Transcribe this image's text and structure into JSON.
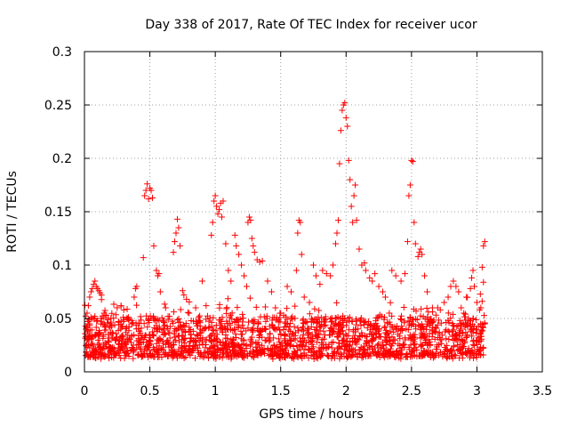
{
  "chart_data": {
    "type": "scatter",
    "title": "Day 338 of 2017, Rate Of TEC Index for receiver ucor",
    "xlabel": "GPS time / hours",
    "ylabel": "ROTI / TECUs",
    "xlim": [
      0,
      3.5
    ],
    "ylim": [
      0,
      0.3
    ],
    "x_ticks": [
      0,
      0.5,
      1,
      1.5,
      2,
      2.5,
      3,
      3.5
    ],
    "x_tick_labels": [
      "0",
      "0.5",
      "1",
      "1.5",
      "2",
      "2.5",
      "3",
      "3.5"
    ],
    "y_ticks": [
      0,
      0.05,
      0.1,
      0.15,
      0.2,
      0.25,
      0.3
    ],
    "y_tick_labels": [
      "0",
      "0.05",
      "0.1",
      "0.15",
      "0.2",
      "0.25",
      "0.3"
    ],
    "grid": true,
    "marker": "plus",
    "point_color": "#ff0000",
    "series": [
      {
        "points": [
          [
            0.01,
            0.04
          ],
          [
            0.02,
            0.055
          ],
          [
            0.03,
            0.062
          ],
          [
            0.04,
            0.07
          ],
          [
            0.05,
            0.075
          ],
          [
            0.06,
            0.078
          ],
          [
            0.07,
            0.082
          ],
          [
            0.08,
            0.085
          ],
          [
            0.09,
            0.08
          ],
          [
            0.1,
            0.078
          ],
          [
            0.11,
            0.076
          ],
          [
            0.12,
            0.074
          ],
          [
            0.13,
            0.072
          ],
          [
            0.02,
            0.03
          ],
          [
            0.04,
            0.045
          ],
          [
            0.06,
            0.05
          ],
          [
            0.08,
            0.052
          ],
          [
            0.1,
            0.048
          ],
          [
            0.15,
            0.055
          ],
          [
            0.18,
            0.05
          ],
          [
            0.2,
            0.045
          ],
          [
            0.25,
            0.06
          ],
          [
            0.28,
            0.062
          ],
          [
            0.3,
            0.058
          ],
          [
            0.33,
            0.05
          ],
          [
            0.36,
            0.045
          ],
          [
            0.38,
            0.07
          ],
          [
            0.39,
            0.078
          ],
          [
            0.4,
            0.08
          ],
          [
            0.45,
            0.107
          ],
          [
            0.46,
            0.165
          ],
          [
            0.47,
            0.17
          ],
          [
            0.48,
            0.176
          ],
          [
            0.49,
            0.162
          ],
          [
            0.5,
            0.172
          ],
          [
            0.51,
            0.17
          ],
          [
            0.52,
            0.163
          ],
          [
            0.53,
            0.118
          ],
          [
            0.55,
            0.095
          ],
          [
            0.56,
            0.09
          ],
          [
            0.57,
            0.092
          ],
          [
            0.58,
            0.075
          ],
          [
            0.62,
            0.06
          ],
          [
            0.65,
            0.052
          ],
          [
            0.68,
            0.112
          ],
          [
            0.69,
            0.122
          ],
          [
            0.7,
            0.13
          ],
          [
            0.71,
            0.143
          ],
          [
            0.72,
            0.135
          ],
          [
            0.73,
            0.118
          ],
          [
            0.75,
            0.076
          ],
          [
            0.76,
            0.072
          ],
          [
            0.78,
            0.068
          ],
          [
            0.8,
            0.055
          ],
          [
            0.85,
            0.06
          ],
          [
            0.9,
            0.085
          ],
          [
            0.93,
            0.062
          ],
          [
            0.97,
            0.128
          ],
          [
            0.98,
            0.14
          ],
          [
            0.99,
            0.16
          ],
          [
            1.0,
            0.165
          ],
          [
            1.01,
            0.155
          ],
          [
            1.02,
            0.148
          ],
          [
            1.03,
            0.152
          ],
          [
            1.04,
            0.158
          ],
          [
            1.05,
            0.145
          ],
          [
            1.06,
            0.16
          ],
          [
            1.08,
            0.12
          ],
          [
            1.1,
            0.095
          ],
          [
            1.12,
            0.085
          ],
          [
            1.15,
            0.128
          ],
          [
            1.16,
            0.118
          ],
          [
            1.18,
            0.11
          ],
          [
            1.2,
            0.1
          ],
          [
            1.22,
            0.09
          ],
          [
            1.24,
            0.08
          ],
          [
            1.25,
            0.14
          ],
          [
            1.26,
            0.145
          ],
          [
            1.27,
            0.142
          ],
          [
            1.28,
            0.125
          ],
          [
            1.29,
            0.118
          ],
          [
            1.3,
            0.112
          ],
          [
            1.32,
            0.105
          ],
          [
            1.34,
            0.103
          ],
          [
            1.36,
            0.104
          ],
          [
            1.4,
            0.085
          ],
          [
            1.43,
            0.075
          ],
          [
            1.46,
            0.06
          ],
          [
            1.5,
            0.055
          ],
          [
            1.55,
            0.08
          ],
          [
            1.58,
            0.075
          ],
          [
            1.62,
            0.095
          ],
          [
            1.63,
            0.13
          ],
          [
            1.64,
            0.142
          ],
          [
            1.65,
            0.14
          ],
          [
            1.66,
            0.11
          ],
          [
            1.68,
            0.07
          ],
          [
            1.72,
            0.065
          ],
          [
            1.75,
            0.1
          ],
          [
            1.77,
            0.09
          ],
          [
            1.8,
            0.082
          ],
          [
            1.82,
            0.095
          ],
          [
            1.85,
            0.092
          ],
          [
            1.88,
            0.09
          ],
          [
            1.9,
            0.1
          ],
          [
            1.92,
            0.12
          ],
          [
            1.93,
            0.13
          ],
          [
            1.94,
            0.142
          ],
          [
            1.95,
            0.195
          ],
          [
            1.96,
            0.226
          ],
          [
            1.97,
            0.245
          ],
          [
            1.98,
            0.25
          ],
          [
            1.99,
            0.252
          ],
          [
            2.0,
            0.238
          ],
          [
            2.01,
            0.23
          ],
          [
            2.02,
            0.198
          ],
          [
            2.03,
            0.18
          ],
          [
            2.04,
            0.155
          ],
          [
            2.05,
            0.14
          ],
          [
            2.06,
            0.165
          ],
          [
            2.07,
            0.175
          ],
          [
            2.08,
            0.142
          ],
          [
            2.1,
            0.115
          ],
          [
            2.12,
            0.1
          ],
          [
            2.14,
            0.102
          ],
          [
            2.15,
            0.095
          ],
          [
            2.18,
            0.088
          ],
          [
            2.2,
            0.085
          ],
          [
            2.22,
            0.092
          ],
          [
            2.25,
            0.08
          ],
          [
            2.28,
            0.075
          ],
          [
            2.3,
            0.07
          ],
          [
            2.35,
            0.095
          ],
          [
            2.38,
            0.09
          ],
          [
            2.42,
            0.085
          ],
          [
            2.45,
            0.092
          ],
          [
            2.47,
            0.122
          ],
          [
            2.48,
            0.165
          ],
          [
            2.49,
            0.175
          ],
          [
            2.5,
            0.198
          ],
          [
            2.51,
            0.197
          ],
          [
            2.52,
            0.14
          ],
          [
            2.53,
            0.12
          ],
          [
            2.55,
            0.108
          ],
          [
            2.56,
            0.112
          ],
          [
            2.57,
            0.115
          ],
          [
            2.58,
            0.11
          ],
          [
            2.6,
            0.09
          ],
          [
            2.62,
            0.075
          ],
          [
            2.66,
            0.06
          ],
          [
            2.7,
            0.06
          ],
          [
            2.72,
            0.058
          ],
          [
            2.75,
            0.065
          ],
          [
            2.78,
            0.07
          ],
          [
            2.8,
            0.08
          ],
          [
            2.82,
            0.085
          ],
          [
            2.84,
            0.08
          ],
          [
            2.86,
            0.075
          ],
          [
            2.88,
            0.06
          ],
          [
            2.9,
            0.055
          ],
          [
            2.92,
            0.07
          ],
          [
            2.95,
            0.078
          ],
          [
            2.96,
            0.088
          ],
          [
            2.97,
            0.095
          ],
          [
            2.98,
            0.08
          ],
          [
            3.0,
            0.065
          ],
          [
            3.02,
            0.058
          ],
          [
            3.03,
            0.06
          ],
          [
            3.04,
            0.098
          ],
          [
            3.05,
            0.118
          ],
          [
            3.06,
            0.122
          ],
          [
            3.05,
            0.084
          ],
          [
            3.04,
            0.066
          ],
          [
            3.06,
            0.045
          ]
        ]
      }
    ]
  }
}
